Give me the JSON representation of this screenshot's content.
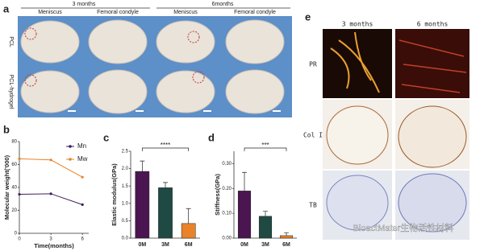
{
  "panel_labels": [
    "a",
    "b",
    "c",
    "d",
    "e"
  ],
  "panel_a": {
    "time_headers": [
      "3 months",
      "6months"
    ],
    "columns": [
      "Meniscus",
      "Femoral condyle",
      "Meniscus",
      "Femoral condyle"
    ],
    "rows": [
      "PCL",
      "PCL-hydrogel"
    ]
  },
  "panel_e": {
    "columns": [
      "3 months",
      "6 months"
    ],
    "rows": [
      "PR",
      "Col I",
      "TB"
    ]
  },
  "watermark": "BioactMater生物活性材料",
  "chart_data": [
    {
      "type": "line",
      "xlabel": "Time(months)",
      "ylabel": "Molecular weight('000)",
      "x": [
        0,
        3,
        6
      ],
      "xlim": [
        0,
        6.6
      ],
      "xticks": [
        0,
        3,
        6
      ],
      "ylim": [
        0,
        80
      ],
      "yticks": [
        0,
        20,
        40,
        60,
        80
      ],
      "series": [
        {
          "name": "Mn",
          "color": "#3d1f5c",
          "values": [
            34,
            34.5,
            25
          ]
        },
        {
          "name": "Mw",
          "color": "#e8832a",
          "values": [
            65,
            64,
            49
          ]
        }
      ]
    },
    {
      "type": "bar",
      "ylabel": "Elastic modulus(GPa)",
      "categories": [
        "0M",
        "3M",
        "6M"
      ],
      "values": [
        1.92,
        1.45,
        0.42
      ],
      "errors": [
        0.3,
        0.15,
        0.43
      ],
      "colors": [
        "#4a1550",
        "#1f4a44",
        "#e8832a"
      ],
      "ylim": [
        0,
        2.5
      ],
      "yticks": [
        {
          "value": 0,
          "label": "0.0"
        },
        0.5,
        {
          "value": 1,
          "label": "1.0"
        },
        1.5,
        {
          "value": 2,
          "label": "2.0"
        },
        2.5
      ],
      "significance": "****"
    },
    {
      "type": "bar",
      "ylabel": "Stiffness(GPa)",
      "categories": [
        "0M",
        "3M",
        "6M"
      ],
      "values": [
        0.19,
        0.088,
        0.01
      ],
      "errors": [
        0.075,
        0.02,
        0.012
      ],
      "colors": [
        "#4a1550",
        "#1f4a44",
        "#e8832a"
      ],
      "ylim": [
        0,
        0.35
      ],
      "yticks": [
        {
          "value": 0,
          "label": "0.00"
        },
        {
          "value": 0.1,
          "label": "0.10"
        },
        {
          "value": 0.2,
          "label": "0.20"
        },
        {
          "value": 0.3,
          "label": "0.30"
        }
      ],
      "significance": "***"
    }
  ]
}
